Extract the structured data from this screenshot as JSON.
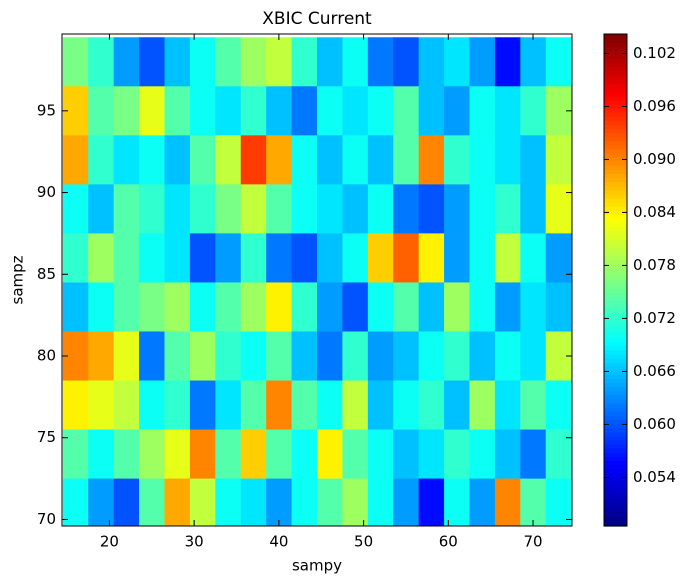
{
  "chart_data": {
    "type": "heatmap",
    "title": "XBIC Current",
    "x_label": "sampy",
    "y_label": "sampz",
    "colormap": "jet",
    "x": [
      16,
      19,
      22,
      25,
      28,
      31,
      34,
      37,
      40,
      43,
      46,
      49,
      52,
      55,
      58,
      61,
      64,
      67,
      70,
      73
    ],
    "y": [
      98,
      95,
      92,
      89,
      86,
      83,
      80,
      77,
      74,
      71
    ],
    "values": [
      [
        0.076,
        0.072,
        0.064,
        0.06,
        0.066,
        0.07,
        0.074,
        0.078,
        0.08,
        0.072,
        0.066,
        0.07,
        0.062,
        0.06,
        0.066,
        0.068,
        0.064,
        0.056,
        0.066,
        0.07
      ],
      [
        0.086,
        0.074,
        0.076,
        0.082,
        0.074,
        0.07,
        0.068,
        0.072,
        0.066,
        0.062,
        0.07,
        0.068,
        0.07,
        0.074,
        0.066,
        0.064,
        0.07,
        0.068,
        0.072,
        0.078
      ],
      [
        0.088,
        0.072,
        0.068,
        0.07,
        0.066,
        0.074,
        0.08,
        0.094,
        0.088,
        0.07,
        0.066,
        0.07,
        0.066,
        0.074,
        0.09,
        0.072,
        0.07,
        0.068,
        0.066,
        0.08
      ],
      [
        0.07,
        0.066,
        0.074,
        0.072,
        0.068,
        0.072,
        0.076,
        0.08,
        0.074,
        0.07,
        0.068,
        0.066,
        0.07,
        0.062,
        0.06,
        0.064,
        0.07,
        0.072,
        0.066,
        0.082
      ],
      [
        0.072,
        0.078,
        0.074,
        0.07,
        0.068,
        0.06,
        0.064,
        0.072,
        0.062,
        0.06,
        0.066,
        0.07,
        0.086,
        0.092,
        0.084,
        0.064,
        0.07,
        0.08,
        0.07,
        0.064
      ],
      [
        0.066,
        0.07,
        0.074,
        0.076,
        0.078,
        0.07,
        0.074,
        0.078,
        0.084,
        0.072,
        0.064,
        0.06,
        0.07,
        0.074,
        0.066,
        0.078,
        0.07,
        0.064,
        0.068,
        0.066
      ],
      [
        0.09,
        0.088,
        0.082,
        0.062,
        0.074,
        0.078,
        0.072,
        0.07,
        0.074,
        0.066,
        0.062,
        0.072,
        0.064,
        0.066,
        0.07,
        0.072,
        0.066,
        0.07,
        0.068,
        0.08
      ],
      [
        0.084,
        0.082,
        0.08,
        0.07,
        0.072,
        0.062,
        0.068,
        0.074,
        0.09,
        0.074,
        0.07,
        0.08,
        0.066,
        0.07,
        0.072,
        0.066,
        0.078,
        0.068,
        0.074,
        0.07
      ],
      [
        0.074,
        0.07,
        0.074,
        0.078,
        0.082,
        0.09,
        0.074,
        0.086,
        0.074,
        0.07,
        0.084,
        0.074,
        0.07,
        0.066,
        0.068,
        0.072,
        0.07,
        0.066,
        0.062,
        0.072
      ],
      [
        0.07,
        0.064,
        0.06,
        0.074,
        0.088,
        0.08,
        0.07,
        0.068,
        0.064,
        0.07,
        0.074,
        0.078,
        0.07,
        0.064,
        0.056,
        0.07,
        0.064,
        0.09,
        0.074,
        0.07
      ]
    ],
    "xlim": [
      14.4,
      74.6
    ],
    "ylim": [
      69.6,
      99.7
    ],
    "xticks": [
      20,
      30,
      40,
      50,
      60,
      70
    ],
    "yticks": [
      70,
      75,
      80,
      85,
      90,
      95
    ],
    "clim": [
      0.0485,
      0.1042
    ],
    "cticks": [
      0.054,
      {
        "value": 0.06,
        "label": "0.060"
      },
      0.066,
      0.072,
      0.078,
      0.084,
      {
        "value": 0.09,
        "label": "0.090"
      },
      0.096,
      0.102
    ]
  }
}
